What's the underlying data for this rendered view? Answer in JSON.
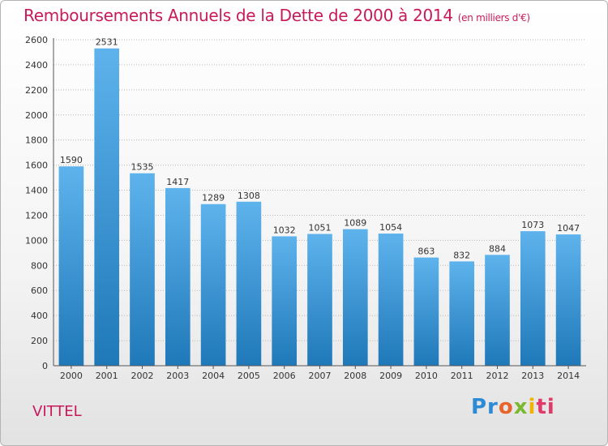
{
  "title": "Remboursements Annuels de la Dette de 2000 à 2014",
  "unit_note": "(en milliers d'€)",
  "commune": "VITTEL",
  "brand": {
    "p1": "Pr",
    "p2": "o",
    "p3": "x",
    "p4": "i",
    "p5": "ti"
  },
  "colors": {
    "bar_top": "#5eb3ec",
    "bar_bottom": "#1f78b8",
    "title": "#c81a5a"
  },
  "chart_data": {
    "type": "bar",
    "title": "Remboursements Annuels de la Dette de 2000 à 2014",
    "xlabel": "",
    "ylabel": "",
    "ylim": [
      0,
      2600
    ],
    "yticks": [
      0,
      200,
      400,
      600,
      800,
      1000,
      1200,
      1400,
      1600,
      1800,
      2000,
      2200,
      2400,
      2600
    ],
    "categories": [
      "2000",
      "2001",
      "2002",
      "2003",
      "2004",
      "2005",
      "2006",
      "2007",
      "2008",
      "2009",
      "2010",
      "2011",
      "2012",
      "2013",
      "2014"
    ],
    "values": [
      1590,
      2531,
      1535,
      1417,
      1289,
      1308,
      1032,
      1051,
      1089,
      1054,
      863,
      832,
      884,
      1073,
      1047
    ],
    "grid": true
  }
}
